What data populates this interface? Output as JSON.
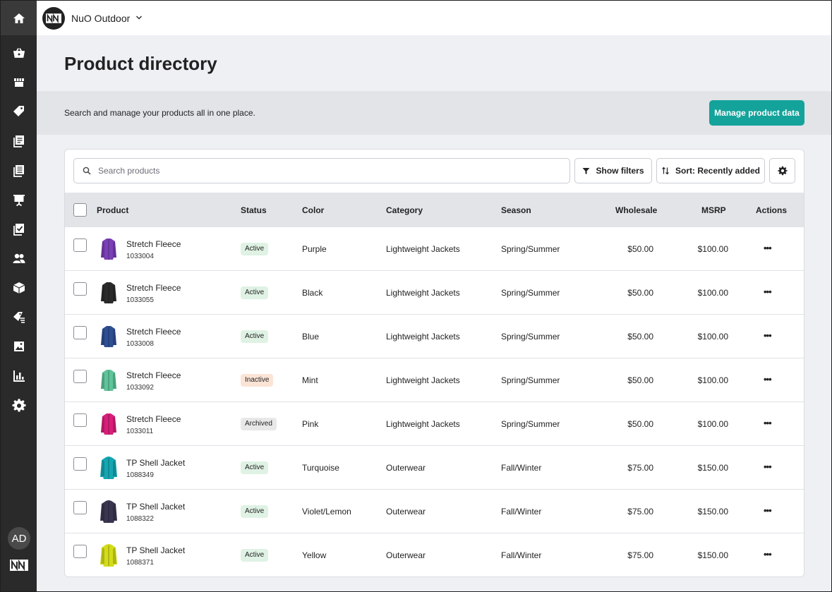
{
  "brand": {
    "name": "NuO Outdoor"
  },
  "sidebar": {
    "avatar_initials": "AD"
  },
  "page": {
    "title": "Product directory",
    "subtitle": "Search and manage your products all in one place.",
    "manage_label": "Manage product data"
  },
  "toolbar": {
    "search_placeholder": "Search products",
    "filters_label": "Show filters",
    "sort_label": "Sort: Recently added"
  },
  "table": {
    "columns": {
      "product": "Product",
      "status": "Status",
      "color": "Color",
      "category": "Category",
      "season": "Season",
      "wholesale": "Wholesale",
      "msrp": "MSRP",
      "actions": "Actions"
    },
    "rows": [
      {
        "name": "Stretch Fleece",
        "sku": "1033004",
        "status": "Active",
        "color": "Purple",
        "category": "Lightweight Jackets",
        "season": "Spring/Summer",
        "wholesale": "$50.00",
        "msrp": "$100.00",
        "swatch": "#7b3fb8",
        "kind": "fleece"
      },
      {
        "name": "Stretch Fleece",
        "sku": "1033055",
        "status": "Active",
        "color": "Black",
        "category": "Lightweight Jackets",
        "season": "Spring/Summer",
        "wholesale": "$50.00",
        "msrp": "$100.00",
        "swatch": "#2b2b2b",
        "kind": "fleece"
      },
      {
        "name": "Stretch Fleece",
        "sku": "1033008",
        "status": "Active",
        "color": "Blue",
        "category": "Lightweight Jackets",
        "season": "Spring/Summer",
        "wholesale": "$50.00",
        "msrp": "$100.00",
        "swatch": "#2f4f94",
        "kind": "fleece"
      },
      {
        "name": "Stretch Fleece",
        "sku": "1033092",
        "status": "Inactive",
        "color": "Mint",
        "category": "Lightweight Jackets",
        "season": "Spring/Summer",
        "wholesale": "$50.00",
        "msrp": "$100.00",
        "swatch": "#5fc49a",
        "kind": "fleece"
      },
      {
        "name": "Stretch Fleece",
        "sku": "1033011",
        "status": "Archived",
        "color": "Pink",
        "category": "Lightweight Jackets",
        "season": "Spring/Summer",
        "wholesale": "$50.00",
        "msrp": "$100.00",
        "swatch": "#d81f7a",
        "kind": "fleece"
      },
      {
        "name": "TP Shell Jacket",
        "sku": "1088349",
        "status": "Active",
        "color": "Turquoise",
        "category": "Outerwear",
        "season": "Fall/Winter",
        "wholesale": "$75.00",
        "msrp": "$150.00",
        "swatch": "#14a7b3",
        "kind": "shell"
      },
      {
        "name": "TP Shell Jacket",
        "sku": "1088322",
        "status": "Active",
        "color": "Violet/Lemon",
        "category": "Outerwear",
        "season": "Fall/Winter",
        "wholesale": "$75.00",
        "msrp": "$150.00",
        "swatch": "#3a3550",
        "kind": "shell"
      },
      {
        "name": "TP Shell Jacket",
        "sku": "1088371",
        "status": "Active",
        "color": "Yellow",
        "category": "Outerwear",
        "season": "Fall/Winter",
        "wholesale": "$75.00",
        "msrp": "$150.00",
        "swatch": "#d4dc1a",
        "kind": "shell"
      }
    ]
  },
  "colors": {
    "accent": "#14a39b",
    "sidebar": "#2a2a2a",
    "active_badge": "#dff2e4",
    "inactive_badge": "#fbe4d6",
    "archived_badge": "#e8e8e8"
  },
  "icons": [
    "home-icon",
    "basket-icon",
    "store-icon",
    "tag-icon",
    "catalog-icon",
    "linesheet-icon",
    "presentation-icon",
    "checklist-icon",
    "users-icon",
    "box-icon",
    "discount-icon",
    "image-icon",
    "chart-icon",
    "gear-icon"
  ]
}
